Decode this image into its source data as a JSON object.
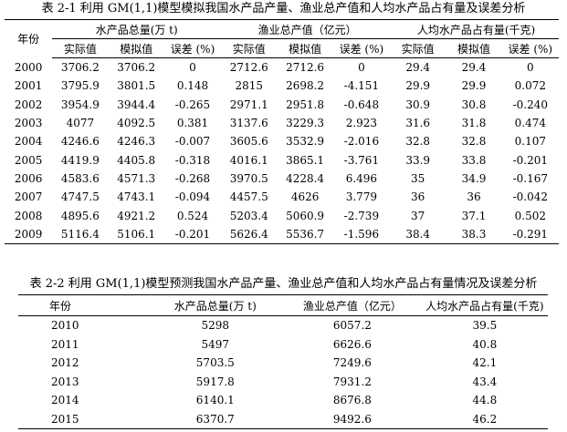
{
  "table1": {
    "caption": "表 2-1 利用 GM(1,1)模型模拟我国水产品产量、渔业总产值和人均水产品占有量及误差分析",
    "year_header": "年份",
    "groups": [
      "水产品总量(万 t)",
      "渔业总产值（亿元）",
      "人均水产品占有量(千克)"
    ],
    "subheaders": [
      "实际值",
      "模拟值",
      "误差 (%)"
    ],
    "rows": [
      [
        "2000",
        "3706.2",
        "3706.2",
        "0",
        "2712.6",
        "2712.6",
        "0",
        "29.4",
        "29.4",
        "0"
      ],
      [
        "2001",
        "3795.9",
        "3801.5",
        "0.148",
        "2815",
        "2698.2",
        "-4.151",
        "29.9",
        "29.9",
        "0.072"
      ],
      [
        "2002",
        "3954.9",
        "3944.4",
        "-0.265",
        "2971.1",
        "2951.8",
        "-0.648",
        "30.9",
        "30.8",
        "-0.240"
      ],
      [
        "2003",
        "4077",
        "4092.5",
        "0.381",
        "3137.6",
        "3229.3",
        "2.923",
        "31.6",
        "31.8",
        "0.474"
      ],
      [
        "2004",
        "4246.6",
        "4246.3",
        "-0.007",
        "3605.6",
        "3532.9",
        "-2.016",
        "32.8",
        "32.8",
        "0.107"
      ],
      [
        "2005",
        "4419.9",
        "4405.8",
        "-0.318",
        "4016.1",
        "3865.1",
        "-3.761",
        "33.9",
        "33.8",
        "-0.201"
      ],
      [
        "2006",
        "4583.6",
        "4571.3",
        "-0.268",
        "3970.5",
        "4228.4",
        "6.496",
        "35",
        "34.9",
        "-0.167"
      ],
      [
        "2007",
        "4747.5",
        "4743.1",
        "-0.094",
        "4457.5",
        "4626",
        "3.779",
        "36",
        "36",
        "-0.042"
      ],
      [
        "2008",
        "4895.6",
        "4921.2",
        "0.524",
        "5203.4",
        "5060.9",
        "-2.739",
        "37",
        "37.1",
        "0.502"
      ],
      [
        "2009",
        "5116.4",
        "5106.1",
        "-0.201",
        "5626.4",
        "5536.7",
        "-1.596",
        "38.4",
        "38.3",
        "-0.291"
      ]
    ]
  },
  "table2": {
    "caption": "表 2-2 利用 GM(1,1)模型预测我国水产品产量、渔业总产值和人均水产品占有量情况及误差分析",
    "headers": [
      "年份",
      "水产品总量(万 t)",
      "渔业总产值（亿元）",
      "人均水产品占有量(千克)"
    ],
    "rows": [
      [
        "2010",
        "5298",
        "6057.2",
        "39.5"
      ],
      [
        "2011",
        "5497",
        "6626.6",
        "40.8"
      ],
      [
        "2012",
        "5703.5",
        "7249.6",
        "42.1"
      ],
      [
        "2013",
        "5917.8",
        "7931.2",
        "43.4"
      ],
      [
        "2014",
        "6140.1",
        "8676.8",
        "44.8"
      ],
      [
        "2015",
        "6370.7",
        "9492.6",
        "46.2"
      ]
    ]
  }
}
